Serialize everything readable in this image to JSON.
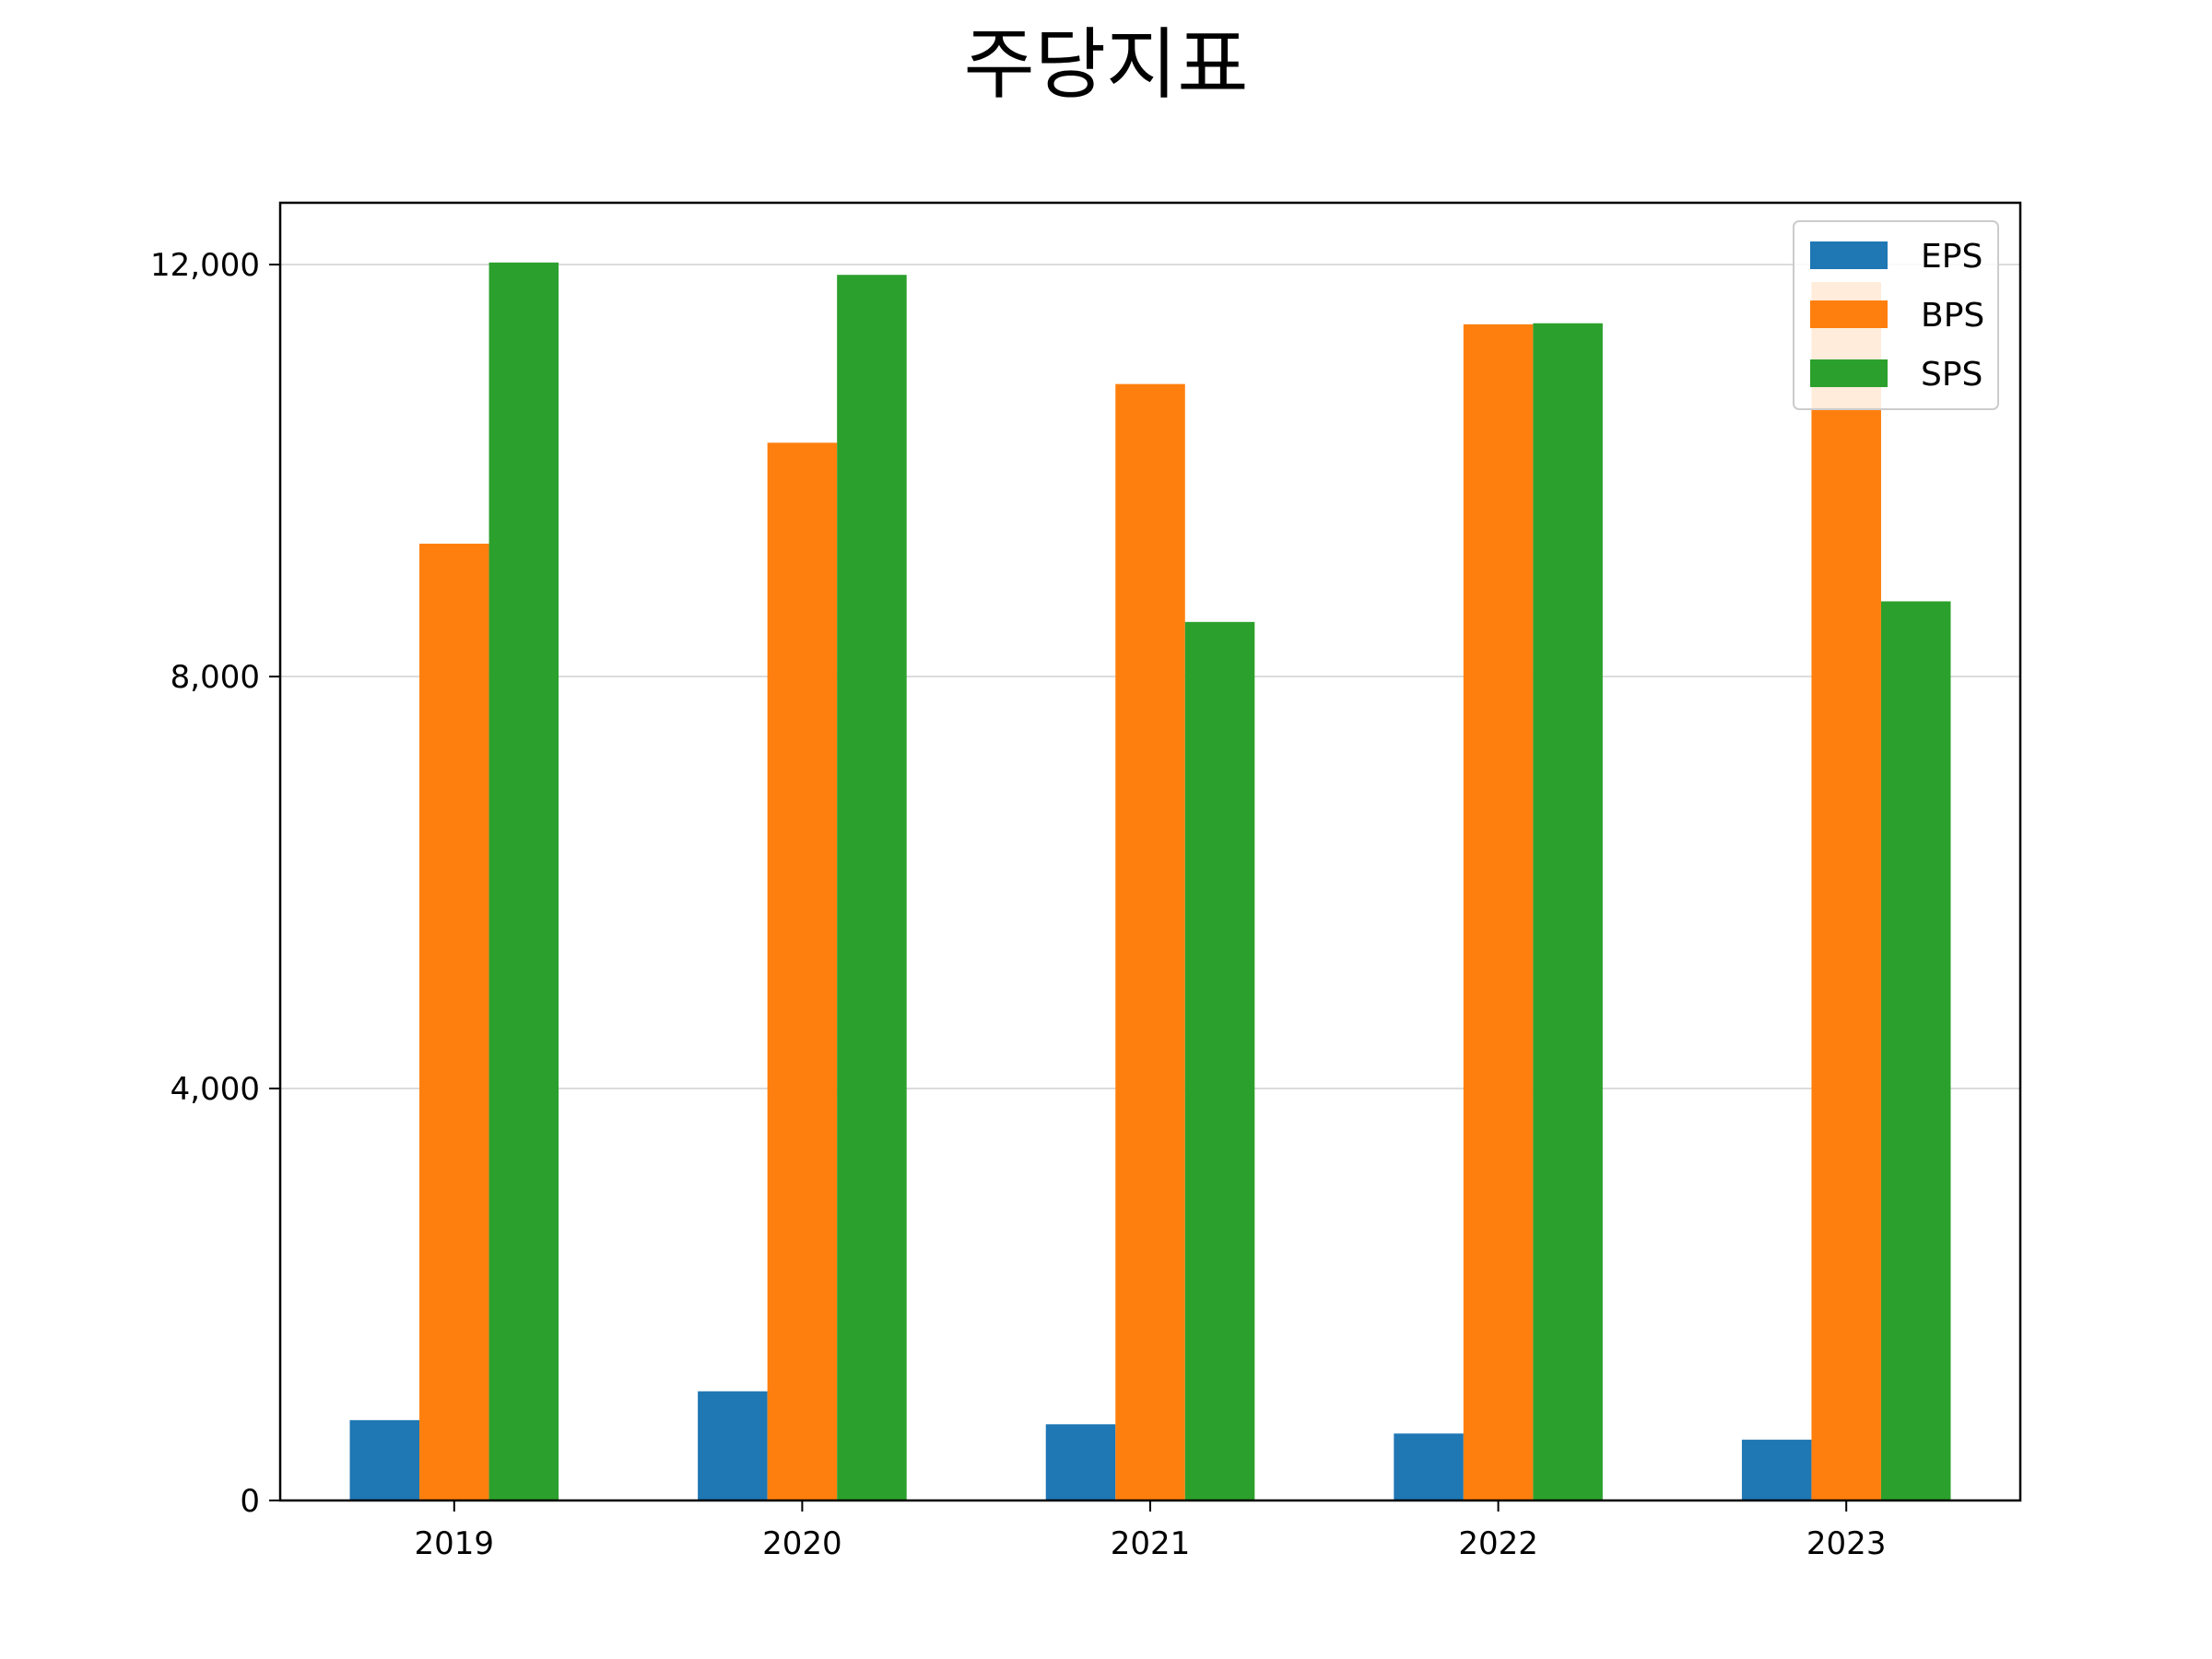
{
  "chart_data": {
    "type": "bar",
    "title": "주당지표",
    "xlabel": "",
    "ylabel": "",
    "categories": [
      "2019",
      "2020",
      "2021",
      "2022",
      "2023"
    ],
    "series": [
      {
        "name": "EPS",
        "color": "#1f77b4",
        "values": [
          780,
          1060,
          740,
          650,
          590
        ]
      },
      {
        "name": "BPS",
        "color": "#ff7f0e",
        "values": [
          9290,
          10270,
          10840,
          11420,
          11830
        ]
      },
      {
        "name": "SPS",
        "color": "#2ca02c",
        "values": [
          12020,
          11900,
          8530,
          11430,
          8730
        ]
      }
    ],
    "ylim": [
      0,
      12600
    ],
    "yticks": [
      0,
      4000,
      8000,
      12000
    ],
    "ytick_labels": [
      "0",
      "4,000",
      "8,000",
      "12,000"
    ],
    "grid": "horizontal",
    "legend_position": "top-right"
  }
}
